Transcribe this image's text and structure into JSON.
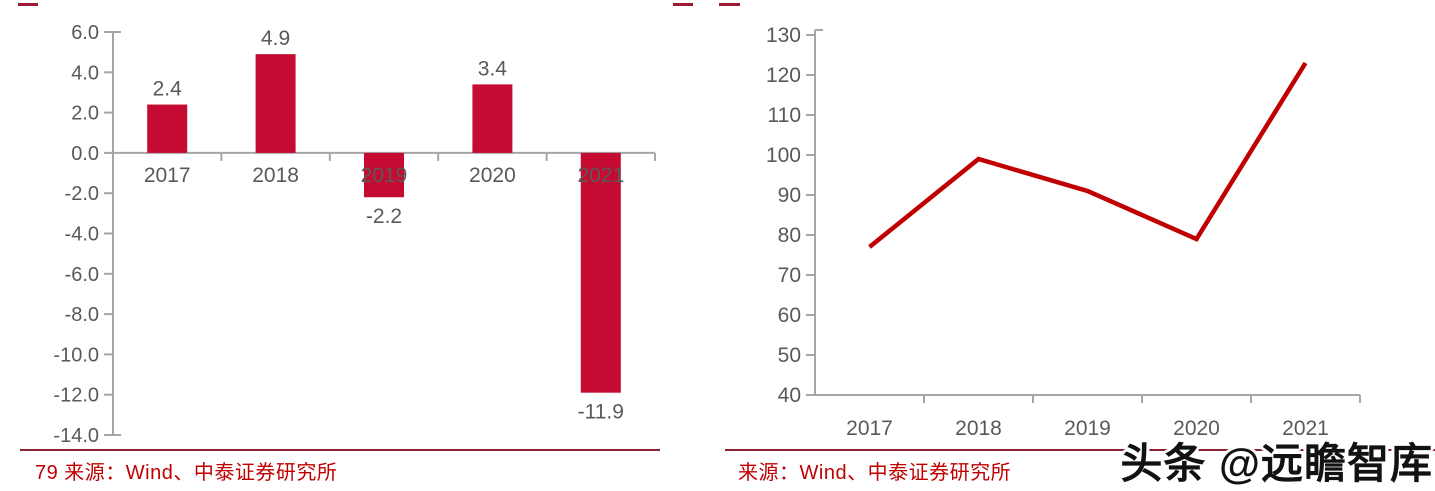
{
  "colors": {
    "bar": "#C60B32",
    "line": "#C00000",
    "axis": "#A6A6A6",
    "tick_text": "#595959",
    "source_text": "#C00000",
    "rule": "#8B2232",
    "crop_mark": "#9B1B32"
  },
  "chart_data": [
    {
      "type": "bar",
      "title": "",
      "categories": [
        "2017",
        "2018",
        "2019",
        "2020",
        "2021"
      ],
      "values": [
        2.4,
        4.9,
        -2.2,
        3.4,
        -11.9
      ],
      "data_labels": [
        "2.4",
        "4.9",
        "-2.2",
        "3.4",
        "-11.9"
      ],
      "ylim": [
        -14,
        6
      ],
      "y_ticks": [
        6,
        4,
        2,
        0,
        -2,
        -4,
        -6,
        -8,
        -10,
        -12,
        -14
      ],
      "y_tick_labels": [
        "6.0",
        "4.0",
        "2.0",
        "0.0",
        "-2.0",
        "-4.0",
        "-6.0",
        "-8.0",
        "-10.0",
        "-12.0",
        "-14.0"
      ],
      "xlabel": "",
      "ylabel": "",
      "grid": false,
      "legend": "none",
      "source": "79 来源：Wind、中泰证券研究所"
    },
    {
      "type": "line",
      "title": "",
      "categories": [
        "2017",
        "2018",
        "2019",
        "2020",
        "2021"
      ],
      "values": [
        77,
        99,
        91,
        79,
        123
      ],
      "ylim": [
        40,
        130
      ],
      "y_ticks": [
        130,
        120,
        110,
        100,
        90,
        80,
        70,
        60,
        50,
        40
      ],
      "y_tick_labels": [
        "130",
        "120",
        "110",
        "100",
        "90",
        "80",
        "70",
        "60",
        "50",
        "40"
      ],
      "xlabel": "",
      "ylabel": "",
      "grid": false,
      "legend": "none",
      "source": "来源：Wind、中泰证券研究所"
    }
  ],
  "footer": {
    "left_source": "79 来源：Wind、中泰证券研究所",
    "right_source": "来源：Wind、中泰证券研究所",
    "watermark": "头条 @远瞻智库"
  }
}
